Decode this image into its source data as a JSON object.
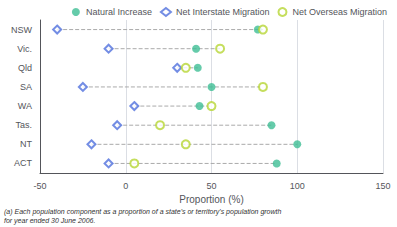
{
  "chart_data": {
    "type": "scatter",
    "orientation": "horizontal",
    "categories": [
      "NSW",
      "Vic.",
      "Qld",
      "SA",
      "WA",
      "Tas.",
      "NT",
      "ACT"
    ],
    "series": [
      {
        "name": "Natural Increase",
        "marker": "circle",
        "values": [
          77,
          41,
          42,
          50,
          43,
          85,
          100,
          88
        ]
      },
      {
        "name": "Net Interstate Migration",
        "marker": "emptyDiamond",
        "values": [
          -40,
          -10,
          30,
          -25,
          5,
          -5,
          -20,
          -10
        ]
      },
      {
        "name": "Net Overseas Migration",
        "marker": "emptyCircle",
        "values": [
          80,
          55,
          35,
          80,
          50,
          20,
          35,
          5
        ]
      }
    ],
    "xlim": [
      -50,
      150
    ],
    "xticks": [
      -50,
      0,
      50,
      100,
      150
    ],
    "xlabel": "Proportion (%)",
    "annotations": [
      "(a) Each population component as a proportion of a state's or territory's population growth\nfor year ended 30 June 2006."
    ],
    "legend": "upper right",
    "grid": true
  }
}
